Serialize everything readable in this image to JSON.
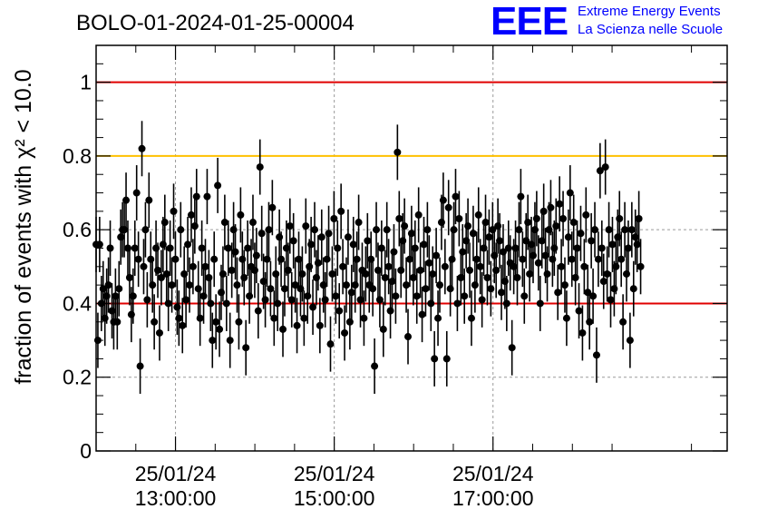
{
  "header": {
    "run_title": "BOLO-01-2024-01-25-00004",
    "logo_letters": "EEE",
    "logo_line1": "Extreme Energy Events",
    "logo_line2": "La Scienza nelle Scuole"
  },
  "colors": {
    "red_line": "#e00000",
    "orange_line": "#ffc000",
    "marker": "#000000",
    "grid": "#9a9a9a",
    "logo": "#0000ff"
  },
  "chart_data": {
    "type": "scatter",
    "title": "BOLO-01-2024-01-25-00004",
    "ylabel": "fraction of events with χ² < 10.0",
    "xlabel": "",
    "x_unit": "hours since 25/01/24 00:00",
    "xlim": [
      12.0,
      19.95
    ],
    "ylim": [
      0,
      1.1
    ],
    "grid": true,
    "x_ticks": [
      {
        "x": 13,
        "date": "25/01/24",
        "time": "13:00:00"
      },
      {
        "x": 15,
        "date": "25/01/24",
        "time": "15:00:00"
      },
      {
        "x": 17,
        "date": "25/01/24",
        "time": "17:00:00"
      }
    ],
    "y_ticks": [
      {
        "y": 0,
        "label": "0"
      },
      {
        "y": 0.2,
        "label": "0.2"
      },
      {
        "y": 0.4,
        "label": "0.4"
      },
      {
        "y": 0.6,
        "label": "0.6"
      },
      {
        "y": 0.8,
        "label": "0.8"
      },
      {
        "y": 1.0,
        "label": "1"
      }
    ],
    "reference_lines": [
      {
        "y": 1.0,
        "color": "#e00000"
      },
      {
        "y": 0.8,
        "color": "#ffc000"
      },
      {
        "y": 0.4,
        "color": "#e00000"
      }
    ],
    "error_bar_halfwidth": 0.075,
    "x_start": 12.0,
    "x_step": 0.0222,
    "y": [
      0.56,
      0.3,
      0.56,
      0.4,
      0.44,
      0.36,
      0.42,
      0.45,
      0.55,
      0.38,
      0.35,
      0.42,
      0.35,
      0.44,
      0.58,
      0.6,
      0.6,
      0.68,
      0.55,
      0.47,
      0.37,
      0.42,
      0.55,
      0.7,
      0.52,
      0.23,
      0.82,
      0.5,
      0.6,
      0.41,
      0.68,
      0.52,
      0.45,
      0.35,
      0.55,
      0.49,
      0.32,
      0.47,
      0.56,
      0.62,
      0.48,
      0.4,
      0.55,
      0.45,
      0.65,
      0.52,
      0.39,
      0.36,
      0.6,
      0.34,
      0.48,
      0.41,
      0.56,
      0.45,
      0.64,
      0.5,
      0.61,
      0.69,
      0.44,
      0.36,
      0.55,
      0.42,
      0.5,
      0.69,
      0.47,
      0.4,
      0.3,
      0.52,
      0.35,
      0.72,
      0.33,
      0.43,
      0.48,
      0.62,
      0.4,
      0.55,
      0.3,
      0.49,
      0.6,
      0.54,
      0.45,
      0.35,
      0.64,
      0.52,
      0.47,
      0.28,
      0.55,
      0.42,
      0.5,
      0.62,
      0.49,
      0.53,
      0.38,
      0.77,
      0.59,
      0.46,
      0.41,
      0.52,
      0.6,
      0.44,
      0.66,
      0.36,
      0.48,
      0.4,
      0.58,
      0.52,
      0.33,
      0.44,
      0.55,
      0.49,
      0.61,
      0.41,
      0.57,
      0.45,
      0.34,
      0.52,
      0.44,
      0.48,
      0.36,
      0.61,
      0.42,
      0.5,
      0.56,
      0.39,
      0.6,
      0.47,
      0.51,
      0.34,
      0.58,
      0.45,
      0.41,
      0.52,
      0.59,
      0.29,
      0.48,
      0.63,
      0.42,
      0.55,
      0.38,
      0.65,
      0.5,
      0.32,
      0.45,
      0.58,
      0.35,
      0.43,
      0.56,
      0.45,
      0.52,
      0.62,
      0.41,
      0.49,
      0.36,
      0.48,
      0.57,
      0.45,
      0.52,
      0.44,
      0.23,
      0.6,
      0.49,
      0.41,
      0.55,
      0.33,
      0.47,
      0.6,
      0.5,
      0.38,
      0.46,
      0.54,
      0.42,
      0.81,
      0.63,
      0.49,
      0.57,
      0.61,
      0.45,
      0.31,
      0.52,
      0.59,
      0.47,
      0.55,
      0.42,
      0.64,
      0.49,
      0.37,
      0.56,
      0.44,
      0.6,
      0.51,
      0.4,
      0.48,
      0.25,
      0.53,
      0.36,
      0.45,
      0.62,
      0.68,
      0.5,
      0.25,
      0.66,
      0.44,
      0.52,
      0.6,
      0.69,
      0.4,
      0.63,
      0.47,
      0.54,
      0.42,
      0.57,
      0.61,
      0.49,
      0.36,
      0.59,
      0.45,
      0.52,
      0.64,
      0.5,
      0.41,
      0.55,
      0.62,
      0.47,
      0.58,
      0.44,
      0.6,
      0.53,
      0.49,
      0.61,
      0.57,
      0.43,
      0.54,
      0.46,
      0.4,
      0.55,
      0.51,
      0.28,
      0.5,
      0.55,
      0.47,
      0.6,
      0.69,
      0.52,
      0.42,
      0.57,
      0.62,
      0.48,
      0.56,
      0.53,
      0.6,
      0.63,
      0.51,
      0.4,
      0.57,
      0.65,
      0.53,
      0.48,
      0.6,
      0.66,
      0.52,
      0.55,
      0.61,
      0.43,
      0.67,
      0.5,
      0.63,
      0.45,
      0.36,
      0.58,
      0.7,
      0.52,
      0.62,
      0.47,
      0.55,
      0.38,
      0.59,
      0.32,
      0.5,
      0.64,
      0.43,
      0.35,
      0.57,
      0.42,
      0.6,
      0.26,
      0.52,
      0.76,
      0.55,
      0.46,
      0.77,
      0.48,
      0.6,
      0.41,
      0.56,
      0.44,
      0.5,
      0.58,
      0.63,
      0.52,
      0.35,
      0.6,
      0.48,
      0.55,
      0.3,
      0.6,
      0.44,
      0.58,
      0.56,
      0.63,
      0.5
    ]
  }
}
